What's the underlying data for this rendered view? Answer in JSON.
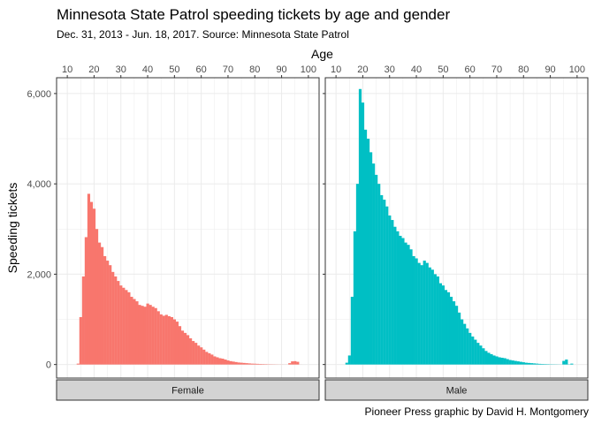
{
  "title": "Minnesota State Patrol speeding tickets by age and gender",
  "subtitle": "Dec. 31, 2013 - Jun. 18, 2017. Source: Minnesota State Patrol",
  "caption": "Pioneer Press graphic by David H. Montgomery",
  "colors": {
    "female": "#F8766D",
    "male": "#00BFC4",
    "strip": "#D3D3D3",
    "grid": "#EBEBEB"
  },
  "chart_data": {
    "type": "bar",
    "title": "Minnesota State Patrol speeding tickets by age and gender",
    "subtitle": "Dec. 31, 2013 - Jun. 18, 2017. Source: Minnesota State Patrol",
    "xlabel": "Age",
    "ylabel": "Speeding tickets",
    "xlim": [
      6,
      104
    ],
    "ylim": [
      -300,
      6350
    ],
    "x_ticks": [
      "10",
      "20",
      "30",
      "40",
      "50",
      "60",
      "70",
      "80",
      "90",
      "100"
    ],
    "y_ticks": [
      "0",
      "2,000",
      "4,000",
      "6,000"
    ],
    "x_axis_position": "top",
    "grid": true,
    "facets": [
      {
        "label": "Female",
        "color": "#F8766D",
        "x": [
          14,
          15,
          16,
          17,
          18,
          19,
          20,
          21,
          22,
          23,
          24,
          25,
          26,
          27,
          28,
          29,
          30,
          31,
          32,
          33,
          34,
          35,
          36,
          37,
          38,
          39,
          40,
          41,
          42,
          43,
          44,
          45,
          46,
          47,
          48,
          49,
          50,
          51,
          52,
          53,
          54,
          55,
          56,
          57,
          58,
          59,
          60,
          61,
          62,
          63,
          64,
          65,
          66,
          67,
          68,
          69,
          70,
          71,
          72,
          73,
          74,
          75,
          76,
          77,
          78,
          79,
          80,
          81,
          82,
          83,
          84,
          85,
          86,
          87,
          88,
          89,
          90,
          91,
          92,
          93,
          94,
          95,
          96,
          97
        ],
        "values": [
          20,
          1050,
          1950,
          2820,
          3780,
          3600,
          3450,
          3000,
          2700,
          2600,
          2400,
          2300,
          2200,
          2050,
          1950,
          1850,
          1750,
          1700,
          1650,
          1600,
          1500,
          1450,
          1400,
          1320,
          1300,
          1280,
          1350,
          1320,
          1280,
          1250,
          1180,
          1110,
          1080,
          1100,
          1070,
          1050,
          1000,
          950,
          850,
          750,
          700,
          650,
          580,
          520,
          480,
          420,
          380,
          330,
          280,
          250,
          220,
          180,
          160,
          140,
          130,
          110,
          90,
          75,
          65,
          55,
          45,
          40,
          35,
          30,
          25,
          20,
          18,
          15,
          12,
          10,
          8,
          6,
          5,
          4,
          3,
          2,
          2,
          1,
          1,
          30,
          70,
          75,
          60,
          1
        ]
      },
      {
        "label": "Male",
        "color": "#00BFC4",
        "x": [
          14,
          15,
          16,
          17,
          18,
          19,
          20,
          21,
          22,
          23,
          24,
          25,
          26,
          27,
          28,
          29,
          30,
          31,
          32,
          33,
          34,
          35,
          36,
          37,
          38,
          39,
          40,
          41,
          42,
          43,
          44,
          45,
          46,
          47,
          48,
          49,
          50,
          51,
          52,
          53,
          54,
          55,
          56,
          57,
          58,
          59,
          60,
          61,
          62,
          63,
          64,
          65,
          66,
          67,
          68,
          69,
          70,
          71,
          72,
          73,
          74,
          75,
          76,
          77,
          78,
          79,
          80,
          81,
          82,
          83,
          84,
          85,
          86,
          87,
          88,
          89,
          90,
          91,
          92,
          93,
          94,
          95,
          96,
          97,
          98
        ],
        "values": [
          40,
          200,
          1500,
          2950,
          4000,
          6100,
          5800,
          5200,
          5000,
          4700,
          4450,
          4200,
          4000,
          3750,
          3650,
          3500,
          3300,
          3200,
          3050,
          2950,
          2850,
          2800,
          2700,
          2650,
          2550,
          2400,
          2350,
          2250,
          2200,
          2300,
          2250,
          2150,
          2100,
          2000,
          1950,
          1800,
          1750,
          1650,
          1600,
          1500,
          1400,
          1300,
          1150,
          1000,
          900,
          800,
          700,
          620,
          550,
          480,
          420,
          360,
          300,
          260,
          230,
          200,
          180,
          160,
          150,
          140,
          120,
          100,
          90,
          80,
          70,
          60,
          50,
          40,
          35,
          30,
          25,
          20,
          15,
          12,
          10,
          8,
          6,
          5,
          4,
          3,
          2,
          80,
          110,
          5,
          20
        ]
      }
    ]
  }
}
